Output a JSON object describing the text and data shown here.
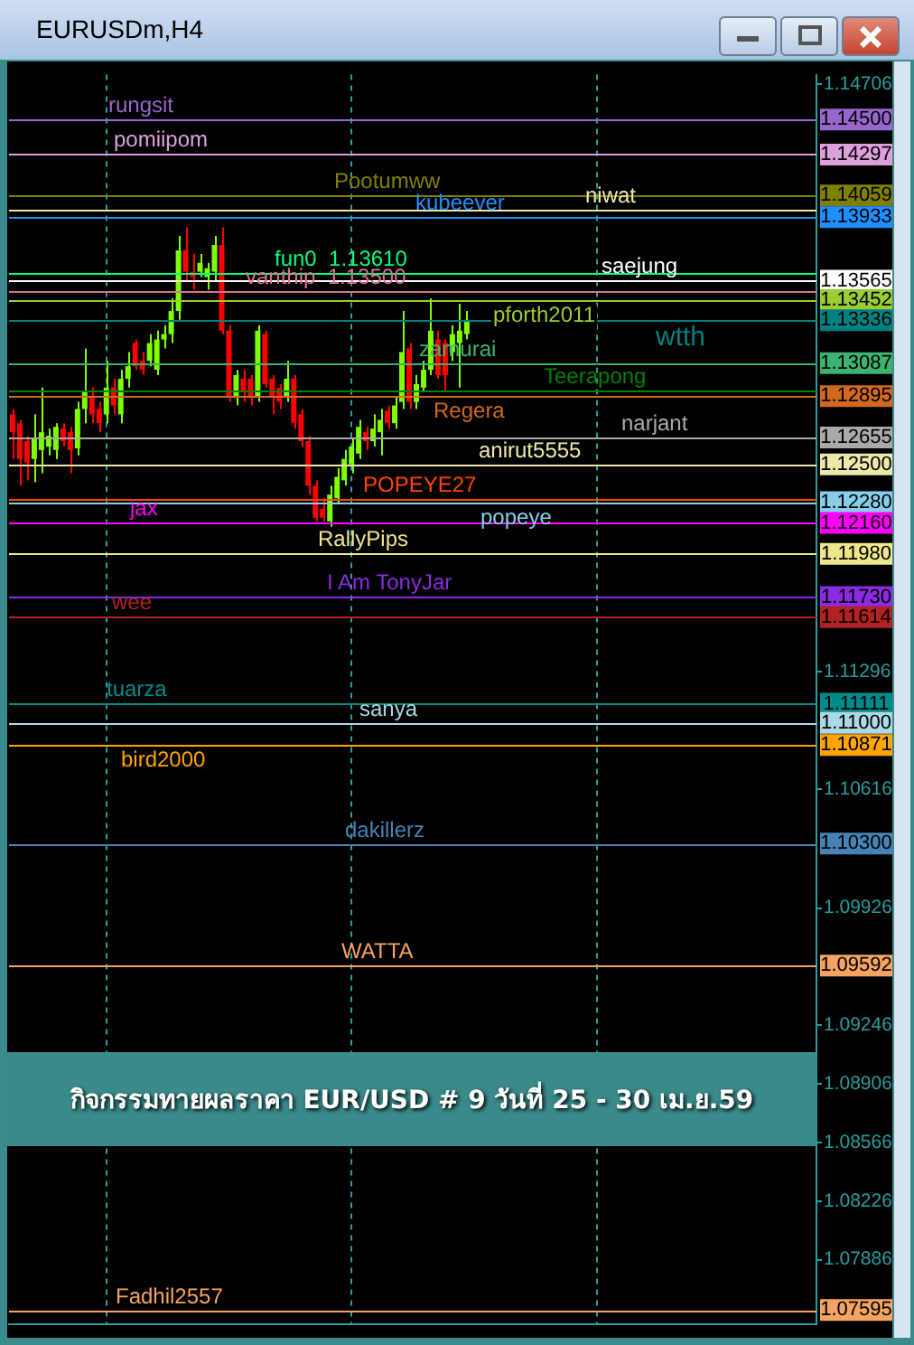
{
  "chart_data": {
    "type": "candlestick",
    "title": "กิจกรรมทายผลราคา EUR/USD # 9 วันที่ 25 - 30 เม.ย.59",
    "subtitle": "EURUSDm,H4",
    "categories": [
      null,
      null,
      null,
      null,
      null,
      null,
      null,
      null,
      null,
      null,
      null,
      null,
      null,
      null,
      null,
      null,
      null,
      null,
      null,
      null,
      null,
      null,
      null,
      null,
      null,
      null,
      null,
      null,
      null,
      null,
      null,
      null,
      null,
      null,
      null,
      null,
      null,
      null,
      null,
      null,
      null,
      null,
      null,
      null,
      null,
      null,
      null,
      null,
      null,
      null,
      null,
      null,
      null,
      null,
      null,
      null,
      null,
      null,
      null,
      null,
      null,
      null,
      null,
      null,
      null,
      null,
      null,
      null,
      null,
      null,
      null,
      null,
      null,
      null,
      null,
      null,
      null,
      null,
      null,
      null,
      null,
      null,
      null,
      null,
      null,
      null,
      null,
      null,
      null,
      null,
      null,
      null,
      null,
      null,
      null,
      null,
      null,
      null,
      null,
      null,
      null,
      null,
      null,
      null,
      null,
      null,
      null,
      null,
      null,
      null,
      null,
      null
    ],
    "ohlc": [
      [
        1.1279,
        1.12821,
        1.12531,
        1.12686
      ],
      [
        1.12738,
        1.12758,
        1.12376,
        1.12531
      ],
      [
        1.12634,
        1.12665,
        1.12407,
        1.1251
      ],
      [
        1.12531,
        1.1279,
        1.12396,
        1.12655
      ],
      [
        1.12583,
        1.12945,
        1.12448,
        1.12686
      ],
      [
        1.12603,
        1.12707,
        1.12552,
        1.12665
      ],
      [
        1.12583,
        1.12738,
        1.12531,
        1.12717
      ],
      [
        1.12707,
        1.12738,
        1.12603,
        1.12634
      ],
      [
        1.12686,
        1.12717,
        1.12448,
        1.12583
      ],
      [
        1.12593,
        1.12862,
        1.12552,
        1.12821
      ],
      [
        1.12821,
        1.13172,
        1.12738,
        1.12924
      ],
      [
        1.12893,
        1.12945,
        1.12738,
        1.1279
      ],
      [
        1.12821,
        1.12862,
        1.12686,
        1.12738
      ],
      [
        1.1279,
        1.131,
        1.12738,
        1.12945
      ],
      [
        1.12945,
        1.12996,
        1.1279,
        1.12841
      ],
      [
        1.1279,
        1.13048,
        1.12738,
        1.12996
      ],
      [
        1.12996,
        1.13151,
        1.12945,
        1.13069
      ],
      [
        1.13203,
        1.13224,
        1.13048,
        1.13069
      ],
      [
        1.131,
        1.13151,
        1.13017,
        1.13048
      ],
      [
        1.131,
        1.13255,
        1.13069,
        1.13203
      ],
      [
        1.13048,
        1.13275,
        1.13017,
        1.13224
      ],
      [
        1.13224,
        1.13307,
        1.13172,
        1.13255
      ],
      [
        1.13255,
        1.13462,
        1.13203,
        1.13389
      ],
      [
        1.13389,
        1.13824,
        1.13338,
        1.13741
      ],
      [
        1.13741,
        1.13875,
        1.13565,
        1.13617
      ],
      [
        1.13617,
        1.1372,
        1.13513,
        1.13586
      ],
      [
        1.13617,
        1.1372,
        1.13586,
        1.13668
      ],
      [
        1.13586,
        1.13668,
        1.13513,
        1.13637
      ],
      [
        1.13617,
        1.13824,
        1.13565,
        1.13772
      ],
      [
        1.13772,
        1.13875,
        1.13255,
        1.13275
      ],
      [
        1.13275,
        1.13307,
        1.12862,
        1.12893
      ],
      [
        1.12893,
        1.13048,
        1.12841,
        1.13017
      ],
      [
        1.12996,
        1.13048,
        1.12862,
        1.12924
      ],
      [
        1.12996,
        1.13017,
        1.12841,
        1.12893
      ],
      [
        1.12893,
        1.13307,
        1.12862,
        1.13275
      ],
      [
        1.13255,
        1.13275,
        1.12945,
        1.12965
      ],
      [
        1.12996,
        1.13017,
        1.1279,
        1.12893
      ],
      [
        1.12945,
        1.12965,
        1.12821,
        1.12862
      ],
      [
        1.12893,
        1.131,
        1.12862,
        1.12996
      ],
      [
        1.12996,
        1.13017,
        1.12707,
        1.12738
      ],
      [
        1.1279,
        1.12821,
        1.12603,
        1.12634
      ],
      [
        1.12634,
        1.12665,
        1.12324,
        1.12376
      ],
      [
        1.12376,
        1.12407,
        1.12169,
        1.1219
      ],
      [
        1.12241,
        1.12303,
        1.12169,
        1.1219
      ],
      [
        1.12169,
        1.12376,
        1.12138,
        1.12324
      ],
      [
        1.12303,
        1.12479,
        1.12272,
        1.12427
      ],
      [
        1.12407,
        1.12583,
        1.12376,
        1.12531
      ],
      [
        1.125,
        1.12655,
        1.12448,
        1.12603
      ],
      [
        1.12562,
        1.12758,
        1.12531,
        1.12717
      ],
      [
        1.12686,
        1.12717,
        1.12583,
        1.12634
      ],
      [
        1.12634,
        1.1279,
        1.12603,
        1.12707
      ],
      [
        1.12686,
        1.12821,
        1.12552,
        1.12758
      ],
      [
        1.1281,
        1.12841,
        1.12707,
        1.12738
      ],
      [
        1.12738,
        1.12893,
        1.12707,
        1.12841
      ],
      [
        1.12862,
        1.13389,
        1.12821,
        1.13151
      ],
      [
        1.13172,
        1.13203,
        1.12821,
        1.12862
      ],
      [
        1.12862,
        1.13017,
        1.12821,
        1.12965
      ],
      [
        1.12945,
        1.131,
        1.12924,
        1.13048
      ],
      [
        1.13048,
        1.13462,
        1.13017,
        1.13275
      ],
      [
        1.13224,
        1.13275,
        1.12996,
        1.13017
      ],
      [
        1.13203,
        1.13224,
        1.12924,
        1.13017
      ],
      [
        1.13151,
        1.13307,
        1.131,
        1.13255
      ],
      [
        1.13203,
        1.13431,
        1.12945,
        1.13275
      ],
      [
        1.13255,
        1.13389,
        1.13224,
        1.13338
      ],
      null,
      null,
      null,
      null,
      null,
      null,
      null,
      null,
      null,
      null,
      null,
      null,
      null,
      null,
      null,
      null,
      null,
      null,
      null,
      null,
      null,
      null,
      null,
      null,
      null,
      null,
      null,
      null,
      null,
      null,
      null,
      null,
      null,
      null,
      null,
      null,
      null,
      null,
      null,
      null,
      null,
      null,
      null,
      null,
      null,
      null,
      null,
      null
    ],
    "ylim": [
      1.0751,
      1.1476
    ],
    "yticks": [
      1.14706,
      1.11296,
      1.10616,
      1.09926,
      1.09246,
      1.08906,
      1.08566,
      1.08226,
      1.07886
    ],
    "tick_labels": "y",
    "grid": "x",
    "legend": false,
    "annotations": [
      {
        "text": "1.14500",
        "y": 1.145
      },
      {
        "text": "1.14297",
        "y": 1.14297
      },
      {
        "text": "1.14059",
        "y": 1.14059
      },
      {
        "text": "1.13933",
        "y": 1.13933
      },
      {
        "text": "1.13565",
        "y": 1.13565
      },
      {
        "text": "1.13452",
        "y": 1.13452
      },
      {
        "text": "1.13336",
        "y": 1.13336
      },
      {
        "text": "1.13087",
        "y": 1.13087
      },
      {
        "text": "1.12895",
        "y": 1.12895
      },
      {
        "text": "1.12655",
        "y": 1.12655
      },
      {
        "text": "1.12500",
        "y": 1.125
      },
      {
        "text": "1.12280",
        "y": 1.1228
      },
      {
        "text": "1.12160",
        "y": 1.1216
      },
      {
        "text": "1.11980",
        "y": 1.1198
      },
      {
        "text": "1.11730",
        "y": 1.1173
      },
      {
        "text": "1.11614",
        "y": 1.11614
      },
      {
        "text": "1.11111",
        "y": 1.11111
      },
      {
        "text": "1.11000",
        "y": 1.11
      },
      {
        "text": "1.10871",
        "y": 1.10871
      },
      {
        "text": "1.10300",
        "y": 1.103
      },
      {
        "text": "1.09592",
        "y": 1.09592
      },
      {
        "text": "1.07595",
        "y": 1.07595
      }
    ],
    "ref_lines": [
      {
        "axis": "y",
        "value": 1.145,
        "label": "rungsit",
        "color": "#9966cc"
      },
      {
        "axis": "y",
        "value": 1.14297,
        "label": "pomiipom",
        "color": "#dda0dd"
      },
      {
        "axis": "y",
        "value": 1.14059,
        "label": "Pootumww",
        "color": "#808000"
      },
      {
        "axis": "y",
        "value": 1.13977,
        "label": "niwat",
        "color": "#eee8aa"
      },
      {
        "axis": "y",
        "value": 1.13933,
        "label": "kubeever",
        "color": "#1e90ff"
      },
      {
        "axis": "y",
        "value": 1.1361,
        "label": "fun0  1.13610",
        "color": "#00ff7f"
      },
      {
        "axis": "y",
        "value": 1.13565,
        "label": "saejung",
        "color": "#ffffff"
      },
      {
        "axis": "y",
        "value": 1.135,
        "label": "vanthip  1.13500",
        "color": "#db7093"
      },
      {
        "axis": "y",
        "value": 1.13452,
        "label": "pforth2011",
        "color": "#9acd32"
      },
      {
        "axis": "y",
        "value": 1.13336,
        "label": "wtth",
        "color": "#008080"
      },
      {
        "axis": "y",
        "value": 1.13087,
        "label": "zamurai",
        "color": "#3cb371"
      },
      {
        "axis": "y",
        "value": 1.1293,
        "label": "Teerapong",
        "color": "#008000"
      },
      {
        "axis": "y",
        "value": 1.12895,
        "label": "Regera",
        "color": "#d2691e"
      },
      {
        "axis": "y",
        "value": 1.12655,
        "label": "narjant",
        "color": "#a9a9a9"
      },
      {
        "axis": "y",
        "value": 1.125,
        "label": "anirut5555",
        "color": "#eee8aa"
      },
      {
        "axis": "y",
        "value": 1.123,
        "label": "POPEYE27",
        "color": "#ff4500"
      },
      {
        "axis": "y",
        "value": 1.1228,
        "label": "popeye",
        "color": "#87ceeb"
      },
      {
        "axis": "y",
        "value": 1.1216,
        "label": "jax",
        "color": "#ff00ff"
      },
      {
        "axis": "y",
        "value": 1.1198,
        "label": "RallyPips",
        "color": "#f0e68c"
      },
      {
        "axis": "y",
        "value": 1.1173,
        "label": "I Am TonyJar",
        "color": "#8a2be2"
      },
      {
        "axis": "y",
        "value": 1.11614,
        "label": "wee",
        "color": "#b22222"
      },
      {
        "axis": "y",
        "value": 1.11111,
        "label": "tuarza",
        "color": "#008b8b"
      },
      {
        "axis": "y",
        "value": 1.11,
        "label": "sanya",
        "color": "#add8e6"
      },
      {
        "axis": "y",
        "value": 1.10871,
        "label": "bird2000",
        "color": "#ffa500"
      },
      {
        "axis": "y",
        "value": 1.103,
        "label": "dakillerz",
        "color": "#4682b4"
      },
      {
        "axis": "y",
        "value": 1.09592,
        "label": "WATTA",
        "color": "#f4a460"
      },
      {
        "axis": "y",
        "value": 1.07595,
        "label": "Fadhil2557",
        "color": "#f4a460"
      }
    ]
  }
}
